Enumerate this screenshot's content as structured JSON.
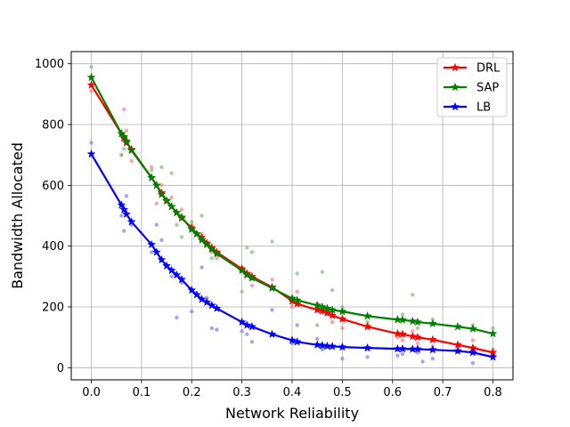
{
  "chart_data": {
    "type": "line",
    "title": "",
    "xlabel": "Network Reliability",
    "ylabel": "Bandwidth Allocated",
    "xlim": [
      -0.04,
      0.84
    ],
    "ylim": [
      -40,
      1040
    ],
    "xticks": [
      0.0,
      0.1,
      0.2,
      0.3,
      0.4,
      0.5,
      0.6,
      0.7,
      0.8
    ],
    "xtick_labels": [
      "0.0",
      "0.1",
      "0.2",
      "0.3",
      "0.4",
      "0.5",
      "0.6",
      "0.7",
      "0.8"
    ],
    "yticks": [
      0,
      200,
      400,
      600,
      800,
      1000
    ],
    "ytick_labels": [
      "0",
      "200",
      "400",
      "600",
      "800",
      "1000"
    ],
    "grid": true,
    "legend_position": "top-right",
    "series": [
      {
        "name": "DRL",
        "color": "#ff0000",
        "marker": "star",
        "x": [
          0.0,
          0.06,
          0.065,
          0.07,
          0.08,
          0.12,
          0.13,
          0.14,
          0.15,
          0.16,
          0.17,
          0.18,
          0.2,
          0.21,
          0.22,
          0.23,
          0.24,
          0.25,
          0.3,
          0.31,
          0.32,
          0.36,
          0.4,
          0.41,
          0.45,
          0.46,
          0.47,
          0.48,
          0.5,
          0.55,
          0.61,
          0.62,
          0.64,
          0.65,
          0.68,
          0.73,
          0.76,
          0.8
        ],
        "y": [
          930,
          770,
          755,
          740,
          718,
          625,
          600,
          575,
          548,
          530,
          510,
          492,
          460,
          440,
          428,
          410,
          395,
          380,
          325,
          310,
          300,
          265,
          220,
          210,
          190,
          187,
          180,
          172,
          160,
          135,
          112,
          110,
          103,
          100,
          92,
          75,
          65,
          50
        ]
      },
      {
        "name": "SAP",
        "color": "#008000",
        "marker": "star",
        "x": [
          0.0,
          0.06,
          0.065,
          0.07,
          0.08,
          0.12,
          0.13,
          0.14,
          0.15,
          0.16,
          0.17,
          0.18,
          0.2,
          0.21,
          0.22,
          0.23,
          0.24,
          0.25,
          0.3,
          0.31,
          0.32,
          0.36,
          0.4,
          0.41,
          0.45,
          0.46,
          0.47,
          0.48,
          0.5,
          0.55,
          0.61,
          0.62,
          0.64,
          0.65,
          0.68,
          0.73,
          0.76,
          0.8
        ],
        "y": [
          955,
          770,
          760,
          745,
          715,
          625,
          600,
          570,
          550,
          530,
          510,
          495,
          455,
          440,
          420,
          405,
          390,
          375,
          320,
          305,
          295,
          262,
          228,
          222,
          205,
          200,
          195,
          190,
          185,
          170,
          158,
          157,
          153,
          150,
          145,
          135,
          128,
          112
        ]
      },
      {
        "name": "LB",
        "color": "#0000ff",
        "marker": "star",
        "x": [
          0.0,
          0.06,
          0.065,
          0.07,
          0.08,
          0.12,
          0.13,
          0.14,
          0.15,
          0.16,
          0.17,
          0.18,
          0.2,
          0.21,
          0.22,
          0.23,
          0.24,
          0.25,
          0.3,
          0.31,
          0.32,
          0.36,
          0.4,
          0.41,
          0.45,
          0.46,
          0.47,
          0.48,
          0.5,
          0.55,
          0.61,
          0.62,
          0.64,
          0.65,
          0.68,
          0.73,
          0.76,
          0.8
        ],
        "y": [
          703,
          535,
          520,
          505,
          480,
          405,
          380,
          355,
          335,
          320,
          305,
          290,
          255,
          240,
          225,
          215,
          205,
          195,
          150,
          140,
          135,
          110,
          90,
          85,
          75,
          73,
          71,
          70,
          68,
          65,
          62,
          62,
          61,
          61,
          59,
          55,
          50,
          35
        ]
      }
    ],
    "scatter": [
      {
        "series": "DRL",
        "color": "#ff7f7f",
        "points": [
          [
            0.0,
            910
          ],
          [
            0.06,
            700
          ],
          [
            0.065,
            850
          ],
          [
            0.07,
            780
          ],
          [
            0.08,
            680
          ],
          [
            0.12,
            660
          ],
          [
            0.13,
            540
          ],
          [
            0.14,
            600
          ],
          [
            0.16,
            560
          ],
          [
            0.18,
            520
          ],
          [
            0.2,
            470
          ],
          [
            0.22,
            440
          ],
          [
            0.24,
            380
          ],
          [
            0.25,
            360
          ],
          [
            0.3,
            330
          ],
          [
            0.32,
            270
          ],
          [
            0.36,
            290
          ],
          [
            0.4,
            200
          ],
          [
            0.41,
            250
          ],
          [
            0.45,
            210
          ],
          [
            0.46,
            180
          ],
          [
            0.48,
            150
          ],
          [
            0.5,
            130
          ],
          [
            0.55,
            140
          ],
          [
            0.61,
            100
          ],
          [
            0.62,
            90
          ],
          [
            0.64,
            120
          ],
          [
            0.65,
            80
          ],
          [
            0.68,
            70
          ],
          [
            0.76,
            90
          ],
          [
            0.8,
            60
          ]
        ]
      },
      {
        "series": "SAP",
        "color": "#7fbf7f",
        "points": [
          [
            0.0,
            990
          ],
          [
            0.06,
            700
          ],
          [
            0.065,
            720
          ],
          [
            0.07,
            750
          ],
          [
            0.12,
            650
          ],
          [
            0.14,
            660
          ],
          [
            0.16,
            640
          ],
          [
            0.17,
            470
          ],
          [
            0.18,
            430
          ],
          [
            0.2,
            480
          ],
          [
            0.22,
            500
          ],
          [
            0.24,
            360
          ],
          [
            0.25,
            380
          ],
          [
            0.3,
            250
          ],
          [
            0.31,
            395
          ],
          [
            0.32,
            380
          ],
          [
            0.36,
            415
          ],
          [
            0.4,
            210
          ],
          [
            0.41,
            310
          ],
          [
            0.45,
            140
          ],
          [
            0.46,
            315
          ],
          [
            0.48,
            255
          ],
          [
            0.5,
            200
          ],
          [
            0.55,
            150
          ],
          [
            0.62,
            175
          ],
          [
            0.64,
            240
          ],
          [
            0.65,
            130
          ],
          [
            0.68,
            160
          ],
          [
            0.76,
            140
          ],
          [
            0.8,
            130
          ]
        ]
      },
      {
        "series": "LB",
        "color": "#7f7fff",
        "points": [
          [
            0.0,
            740
          ],
          [
            0.06,
            500
          ],
          [
            0.065,
            450
          ],
          [
            0.07,
            565
          ],
          [
            0.08,
            470
          ],
          [
            0.12,
            380
          ],
          [
            0.13,
            470
          ],
          [
            0.14,
            420
          ],
          [
            0.16,
            300
          ],
          [
            0.17,
            165
          ],
          [
            0.18,
            280
          ],
          [
            0.2,
            185
          ],
          [
            0.22,
            330
          ],
          [
            0.23,
            230
          ],
          [
            0.24,
            130
          ],
          [
            0.25,
            125
          ],
          [
            0.3,
            120
          ],
          [
            0.31,
            110
          ],
          [
            0.32,
            85
          ],
          [
            0.36,
            190
          ],
          [
            0.4,
            80
          ],
          [
            0.41,
            140
          ],
          [
            0.45,
            95
          ],
          [
            0.46,
            60
          ],
          [
            0.5,
            30
          ],
          [
            0.55,
            35
          ],
          [
            0.61,
            40
          ],
          [
            0.62,
            45
          ],
          [
            0.65,
            50
          ],
          [
            0.66,
            20
          ],
          [
            0.68,
            30
          ],
          [
            0.76,
            15
          ],
          [
            0.8,
            40
          ]
        ]
      }
    ]
  }
}
